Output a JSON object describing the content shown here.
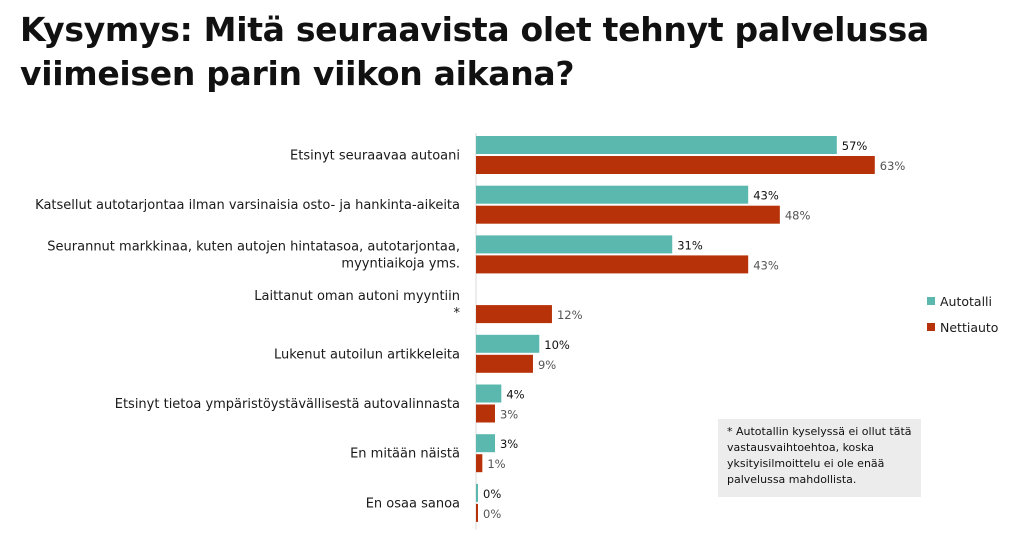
{
  "title_lines": [
    "Kysymys: Mitä seuraavista olet tehnyt palvelussa",
    "viimeisen parin viikon aikana?"
  ],
  "footnote": "* Autotallin kyselyssä ei ollut tätä vastausvaihtoehtoa, koska yksityisilmoittelu ei ole enää palvelussa mahdollista.",
  "colors": {
    "autotalli": "#5bb8ae",
    "nettiauto": "#b83209"
  },
  "chart_data": {
    "type": "bar",
    "orientation": "horizontal",
    "title": "Kysymys: Mitä seuraavista olet tehnyt palvelussa viimeisen parin viikon aikana?",
    "categories": [
      [
        "Etsinyt seuraavaa autoani"
      ],
      [
        "Katsellut autotarjontaa ilman varsinaisia osto- ja hankinta-aikeita"
      ],
      [
        "Seurannut markkinaa, kuten autojen hintatasoa, autotarjontaa,",
        "myyntiaikoja yms."
      ],
      [
        "Laittanut oman autoni myyntiin",
        "*"
      ],
      [
        "Lukenut autoilun artikkeleita"
      ],
      [
        "Etsinyt tietoa ympäristöystävällisestä autovalinnasta"
      ],
      [
        "En mitään näistä"
      ],
      [
        "En osaa sanoa"
      ]
    ],
    "series": [
      {
        "name": "Autotalli",
        "values": [
          57,
          43,
          31,
          null,
          10,
          4,
          3,
          0
        ],
        "labels": [
          "57%",
          "43%",
          "31%",
          "",
          "10%",
          "4%",
          "3%",
          "0%"
        ]
      },
      {
        "name": "Nettiauto",
        "values": [
          63,
          48,
          43,
          12,
          9,
          3,
          1,
          0
        ],
        "labels": [
          "63%",
          "48%",
          "43%",
          "12%",
          "9%",
          "3%",
          "1%",
          "0%"
        ]
      }
    ],
    "xlim": [
      0,
      100
    ],
    "unit": "%",
    "grid": false,
    "legend_position": "right"
  }
}
